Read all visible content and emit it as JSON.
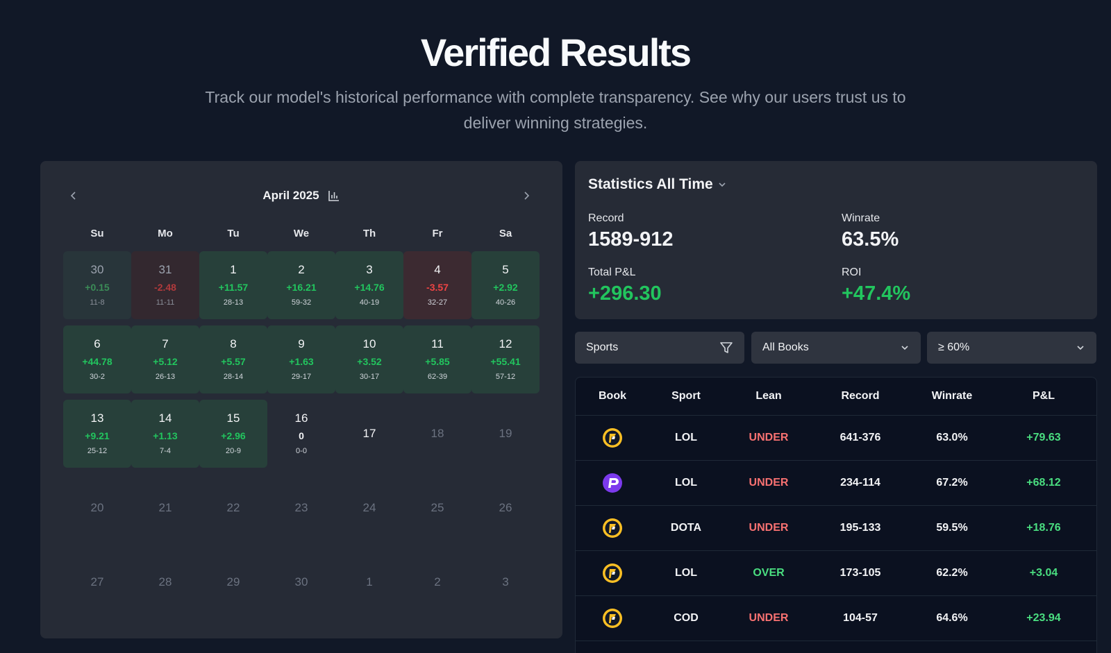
{
  "hero": {
    "title": "Verified Results",
    "subtitle": "Track our model's historical performance with complete transparency. See why our users trust us to deliver winning strategies."
  },
  "calendar": {
    "month": "April 2025",
    "weekdays": [
      "Su",
      "Mo",
      "Tu",
      "We",
      "Th",
      "Fr",
      "Sa"
    ],
    "days": [
      {
        "d": "30",
        "pl": "+0.15",
        "rec": "11-8",
        "state": "win",
        "muted": true
      },
      {
        "d": "31",
        "pl": "-2.48",
        "rec": "11-11",
        "state": "loss",
        "muted": true
      },
      {
        "d": "1",
        "pl": "+11.57",
        "rec": "28-13",
        "state": "win"
      },
      {
        "d": "2",
        "pl": "+16.21",
        "rec": "59-32",
        "state": "win"
      },
      {
        "d": "3",
        "pl": "+14.76",
        "rec": "40-19",
        "state": "win"
      },
      {
        "d": "4",
        "pl": "-3.57",
        "rec": "32-27",
        "state": "loss"
      },
      {
        "d": "5",
        "pl": "+2.92",
        "rec": "40-26",
        "state": "win"
      },
      {
        "d": "6",
        "pl": "+44.78",
        "rec": "30-2",
        "state": "win"
      },
      {
        "d": "7",
        "pl": "+5.12",
        "rec": "26-13",
        "state": "win"
      },
      {
        "d": "8",
        "pl": "+5.57",
        "rec": "28-14",
        "state": "win"
      },
      {
        "d": "9",
        "pl": "+1.63",
        "rec": "29-17",
        "state": "win"
      },
      {
        "d": "10",
        "pl": "+3.52",
        "rec": "30-17",
        "state": "win"
      },
      {
        "d": "11",
        "pl": "+5.85",
        "rec": "62-39",
        "state": "win"
      },
      {
        "d": "12",
        "pl": "+55.41",
        "rec": "57-12",
        "state": "win"
      },
      {
        "d": "13",
        "pl": "+9.21",
        "rec": "25-12",
        "state": "win"
      },
      {
        "d": "14",
        "pl": "+1.13",
        "rec": "7-4",
        "state": "win"
      },
      {
        "d": "15",
        "pl": "+2.96",
        "rec": "20-9",
        "state": "win"
      },
      {
        "d": "16",
        "pl": "0",
        "rec": "0-0",
        "state": "zero"
      },
      {
        "d": "17",
        "state": "empty",
        "current": true
      },
      {
        "d": "18",
        "state": "empty"
      },
      {
        "d": "19",
        "state": "empty"
      },
      {
        "d": "20",
        "state": "empty"
      },
      {
        "d": "21",
        "state": "empty"
      },
      {
        "d": "22",
        "state": "empty"
      },
      {
        "d": "23",
        "state": "empty"
      },
      {
        "d": "24",
        "state": "empty"
      },
      {
        "d": "25",
        "state": "empty"
      },
      {
        "d": "26",
        "state": "empty"
      },
      {
        "d": "27",
        "state": "empty"
      },
      {
        "d": "28",
        "state": "empty"
      },
      {
        "d": "29",
        "state": "empty"
      },
      {
        "d": "30",
        "state": "empty"
      },
      {
        "d": "1",
        "state": "empty"
      },
      {
        "d": "2",
        "state": "empty"
      },
      {
        "d": "3",
        "state": "empty"
      }
    ]
  },
  "stats": {
    "title": "Statistics All Time",
    "record_label": "Record",
    "record_value": "1589-912",
    "winrate_label": "Winrate",
    "winrate_value": "63.5%",
    "pl_label": "Total P&L",
    "pl_value": "+296.30",
    "roi_label": "ROI",
    "roi_value": "+47.4%"
  },
  "filters": {
    "sports": "Sports",
    "books": "All Books",
    "threshold": "≥ 60%"
  },
  "table": {
    "headers": [
      "Book",
      "Sport",
      "Lean",
      "Record",
      "Winrate",
      "P&L"
    ],
    "rows": [
      {
        "book": "underdog-logo",
        "sport": "LOL",
        "lean": "UNDER",
        "record": "641-376",
        "winrate": "63.0%",
        "pl": "+79.63"
      },
      {
        "book": "prizepicks-logo",
        "sport": "LOL",
        "lean": "UNDER",
        "record": "234-114",
        "winrate": "67.2%",
        "pl": "+68.12"
      },
      {
        "book": "underdog-logo",
        "sport": "DOTA",
        "lean": "UNDER",
        "record": "195-133",
        "winrate": "59.5%",
        "pl": "+18.76"
      },
      {
        "book": "underdog-logo",
        "sport": "LOL",
        "lean": "OVER",
        "record": "173-105",
        "winrate": "62.2%",
        "pl": "+3.04"
      },
      {
        "book": "underdog-logo",
        "sport": "COD",
        "lean": "UNDER",
        "record": "104-57",
        "winrate": "64.6%",
        "pl": "+23.94"
      }
    ]
  },
  "colors": {
    "background": "#111827",
    "panel": "#262b36",
    "positive": "#22c55e",
    "negative": "#ef4444"
  }
}
